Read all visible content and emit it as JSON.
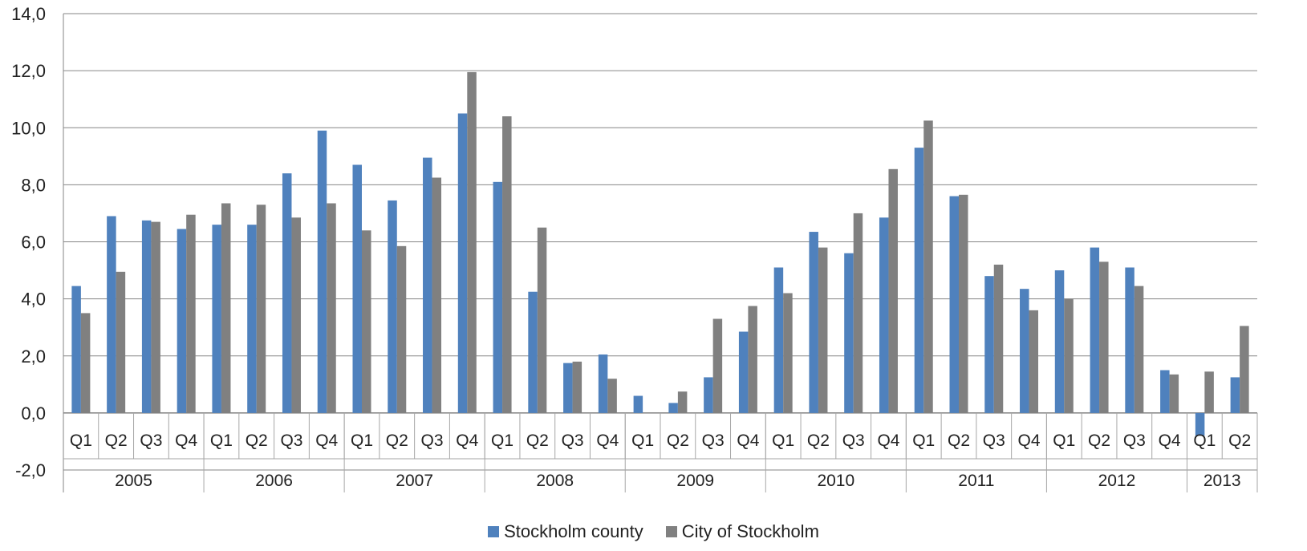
{
  "chart_data": {
    "type": "bar",
    "title": "",
    "xlabel": "",
    "ylabel": "",
    "ylim": [
      -2,
      14
    ],
    "yticks": [
      -2,
      0,
      2,
      4,
      6,
      8,
      10,
      12,
      14
    ],
    "ytick_labels": [
      "-2,0",
      "0,0",
      "2,0",
      "4,0",
      "6,0",
      "8,0",
      "10,0",
      "12,0",
      "14,0"
    ],
    "grid": true,
    "legend_position": "bottom",
    "years": [
      {
        "label": "2005",
        "quarters": 4
      },
      {
        "label": "2006",
        "quarters": 4
      },
      {
        "label": "2007",
        "quarters": 4
      },
      {
        "label": "2008",
        "quarters": 4
      },
      {
        "label": "2009",
        "quarters": 4
      },
      {
        "label": "2010",
        "quarters": 4
      },
      {
        "label": "2011",
        "quarters": 4
      },
      {
        "label": "2012",
        "quarters": 4
      },
      {
        "label": "2013",
        "quarters": 2
      }
    ],
    "categories": [
      "Q1",
      "Q2",
      "Q3",
      "Q4",
      "Q1",
      "Q2",
      "Q3",
      "Q4",
      "Q1",
      "Q2",
      "Q3",
      "Q4",
      "Q1",
      "Q2",
      "Q3",
      "Q4",
      "Q1",
      "Q2",
      "Q3",
      "Q4",
      "Q1",
      "Q2",
      "Q3",
      "Q4",
      "Q1",
      "Q2",
      "Q3",
      "Q4",
      "Q1",
      "Q2",
      "Q3",
      "Q4",
      "Q1",
      "Q2"
    ],
    "series": [
      {
        "name": "Stockholm county",
        "color": "#4f81bd",
        "values": [
          4.45,
          6.9,
          6.75,
          6.45,
          6.6,
          6.6,
          8.4,
          9.9,
          8.7,
          7.45,
          8.95,
          10.5,
          8.1,
          4.25,
          1.75,
          2.05,
          0.6,
          0.35,
          1.25,
          2.85,
          5.1,
          6.35,
          5.6,
          6.85,
          9.3,
          7.6,
          4.8,
          4.35,
          5.0,
          5.8,
          5.1,
          1.5,
          -0.8,
          1.25
        ]
      },
      {
        "name": "City of Stockholm",
        "color": "#808080",
        "values": [
          3.5,
          4.95,
          6.7,
          6.95,
          7.35,
          7.3,
          6.85,
          7.35,
          6.4,
          5.85,
          8.25,
          11.95,
          10.4,
          6.5,
          1.8,
          1.2,
          0.0,
          0.75,
          3.3,
          3.75,
          4.2,
          5.8,
          7.0,
          8.55,
          10.25,
          7.65,
          5.2,
          3.6,
          4.0,
          5.3,
          4.45,
          1.35,
          1.45,
          3.05
        ]
      }
    ]
  }
}
